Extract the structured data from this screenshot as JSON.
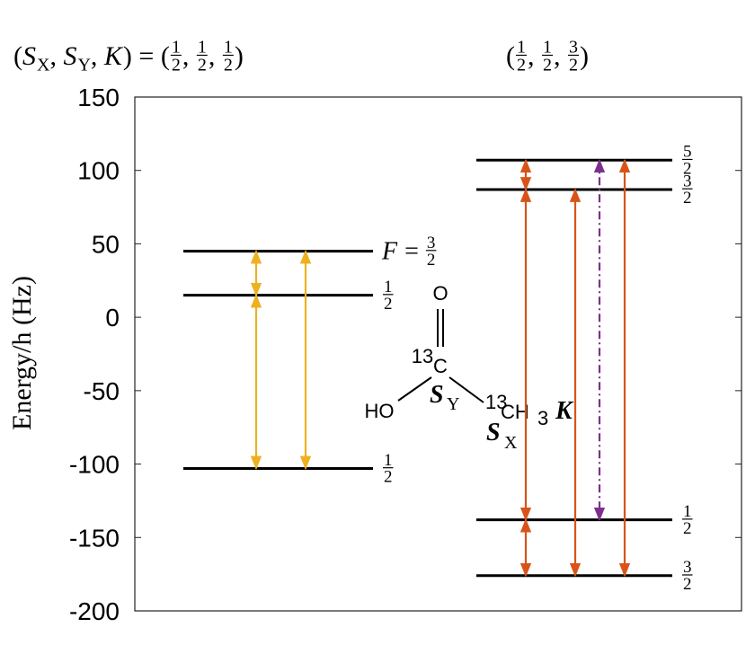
{
  "chart_data": {
    "type": "energy-levels",
    "titles": [
      [
        "(",
        {
          "var": "S",
          "sub": "X"
        },
        ", ",
        {
          "var": "S",
          "sub": "Y"
        },
        ", ",
        {
          "var": "K"
        },
        ") = (",
        {
          "num": "1",
          "den": "2"
        },
        ", ",
        {
          "num": "1",
          "den": "2"
        },
        ", ",
        {
          "num": "1",
          "den": "2"
        },
        ")"
      ],
      [
        "(",
        {
          "num": "1",
          "den": "2"
        },
        ", ",
        {
          "num": "1",
          "den": "2"
        },
        ", ",
        {
          "num": "3",
          "den": "2"
        },
        ")"
      ]
    ],
    "y_label": "Energy/h (Hz)",
    "ylim": [
      -200,
      150
    ],
    "yticks": [
      -200,
      -150,
      -100,
      -50,
      0,
      50,
      100,
      150
    ],
    "groups": [
      {
        "levels": [
          {
            "value": 45,
            "label": [
              {
                "var": "F"
              },
              " = ",
              {
                "num": "3",
                "den": "2"
              }
            ]
          },
          {
            "value": 15,
            "label": [
              {
                "num": "1",
                "den": "2"
              }
            ]
          },
          {
            "value": -103,
            "label": [
              {
                "num": "1",
                "den": "2"
              }
            ]
          }
        ],
        "arrow_columns": [
          [
            {
              "values": [
                45,
                15
              ],
              "color": "#EDB120",
              "dashed": false
            },
            {
              "values": [
                15,
                -103
              ],
              "color": "#EDB120",
              "dashed": false
            }
          ],
          [
            {
              "values": [
                45,
                -103
              ],
              "color": "#EDB120",
              "dashed": false
            }
          ]
        ]
      },
      {
        "levels": [
          {
            "value": 107,
            "label": [
              {
                "num": "5",
                "den": "2"
              }
            ]
          },
          {
            "value": 87,
            "label": [
              {
                "num": "3",
                "den": "2"
              }
            ]
          },
          {
            "value": -138,
            "label": [
              {
                "num": "1",
                "den": "2"
              }
            ]
          },
          {
            "value": -176,
            "label": [
              {
                "num": "3",
                "den": "2"
              }
            ]
          }
        ],
        "arrow_columns": [
          [
            {
              "values": [
                107,
                87
              ],
              "color": "#D95319",
              "dashed": false
            },
            {
              "values": [
                87,
                -138
              ],
              "color": "#D95319",
              "dashed": false
            },
            {
              "values": [
                -138,
                -176
              ],
              "color": "#D95319",
              "dashed": false
            }
          ],
          [
            {
              "values": [
                87,
                -176
              ],
              "color": "#D95319",
              "dashed": false
            }
          ],
          [
            {
              "values": [
                107,
                -138
              ],
              "color": "#7E2F8E",
              "dashed": true
            }
          ],
          [
            {
              "values": [
                107,
                -176
              ],
              "color": "#D95319",
              "dashed": false
            }
          ]
        ]
      }
    ],
    "molecule": {
      "o": "O",
      "c_mass": "13",
      "c": "C",
      "ho": "HO",
      "sy": "S",
      "sy_sub": "Y",
      "ch_mass": "13",
      "ch": "CH",
      "ch_sub": "3",
      "k": "K",
      "sx": "S",
      "sx_sub": "X"
    }
  }
}
